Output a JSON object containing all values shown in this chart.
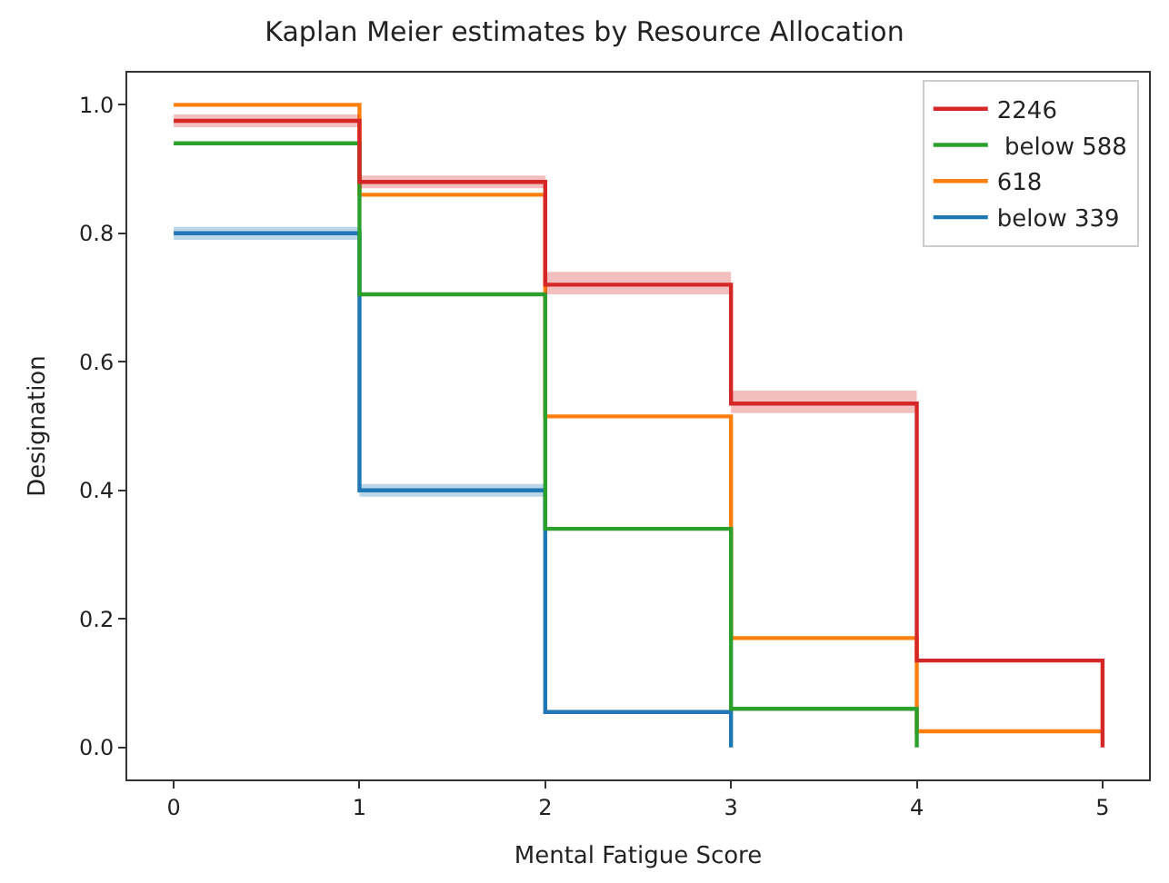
{
  "chart_data": {
    "type": "step",
    "title": "Kaplan Meier estimates by Resource Allocation",
    "xlabel": "Mental Fatigue Score",
    "ylabel": "Designation",
    "series": [
      {
        "name": "below 339",
        "color": "#1f77b4",
        "x": [
          0,
          1,
          2,
          3
        ],
        "values": [
          0.8,
          0.4,
          0.055,
          0
        ],
        "lower": [
          0.79,
          0.39,
          0.05,
          null
        ],
        "upper": [
          0.81,
          0.41,
          0.065,
          null
        ]
      },
      {
        "name": "618",
        "color": "#ff7f0e",
        "x": [
          0,
          1,
          2,
          3,
          4,
          5
        ],
        "values": [
          1.0,
          0.86,
          0.515,
          0.17,
          0.025,
          0.025
        ]
      },
      {
        "name": " below 588",
        "color": "#2ca02c",
        "x": [
          0,
          1,
          2,
          3,
          4
        ],
        "values": [
          0.94,
          0.705,
          0.34,
          0.06,
          0
        ]
      },
      {
        "name": "2246",
        "color": "#d62728",
        "x": [
          0,
          1,
          2,
          3,
          4,
          5
        ],
        "values": [
          0.975,
          0.88,
          0.72,
          0.535,
          0.135,
          0
        ],
        "lower": [
          0.965,
          0.87,
          0.705,
          0.52,
          0.125,
          null
        ],
        "upper": [
          0.985,
          0.89,
          0.74,
          0.555,
          0.145,
          null
        ]
      }
    ],
    "xlim": [
      -0.25,
      5.25
    ],
    "xticks": [
      0,
      1,
      2,
      3,
      4,
      5
    ],
    "ylim": [
      -0.05,
      1.05
    ],
    "yticks": [
      {
        "value": 0,
        "label": "0.0"
      },
      {
        "value": 0.2,
        "label": "0.2"
      },
      {
        "value": 0.4,
        "label": "0.4"
      },
      {
        "value": 0.6,
        "label": "0.6"
      },
      {
        "value": 0.8,
        "label": "0.8"
      },
      {
        "value": 1.0,
        "label": "1.0"
      }
    ],
    "grid": false,
    "legend": "top right"
  }
}
